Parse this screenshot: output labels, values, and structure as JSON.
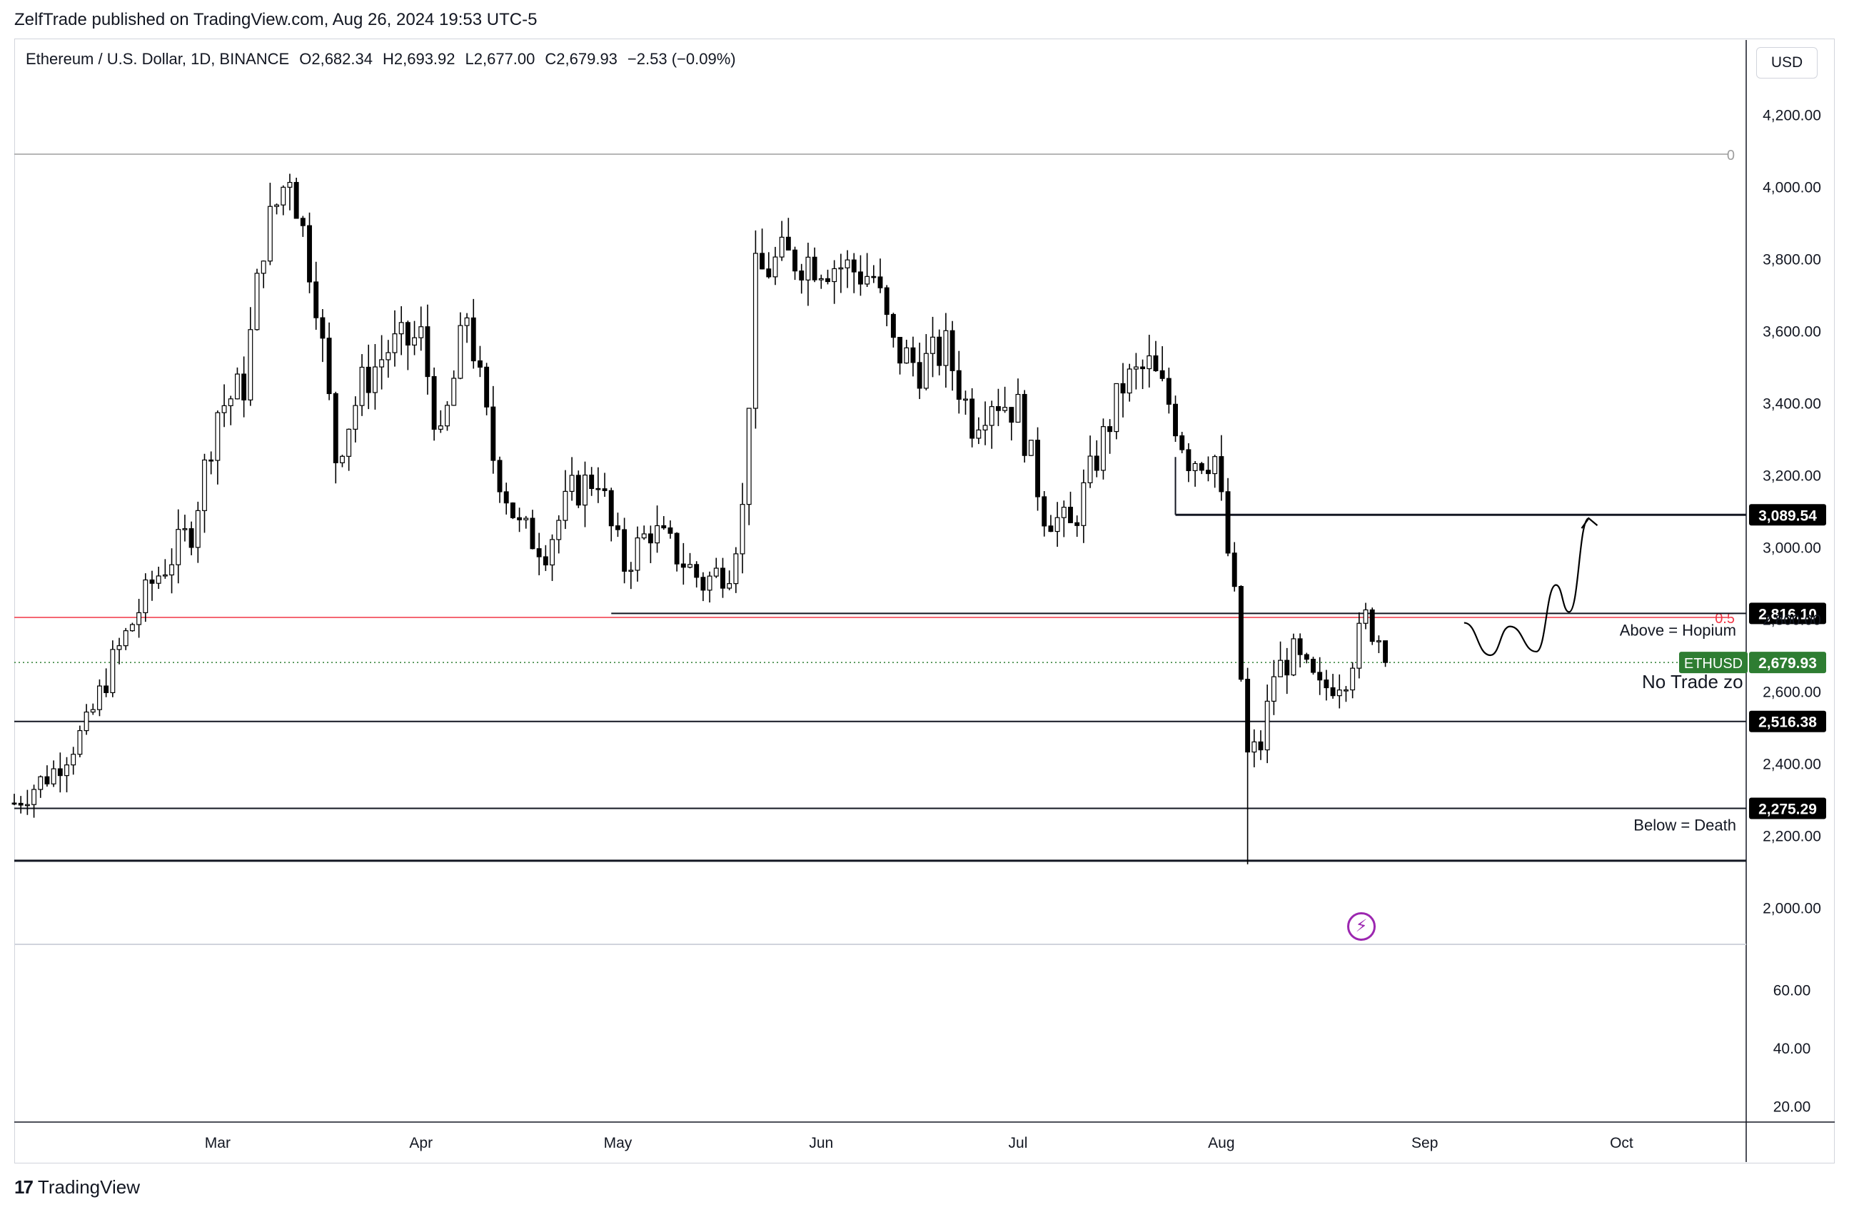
{
  "header": {
    "publisher_line": "ZelfTrade published on TradingView.com, Aug 26, 2024 19:53 UTC-5"
  },
  "legend": {
    "symbol": "Ethereum / U.S. Dollar, 1D, BINANCE",
    "open": "O2,682.34",
    "high": "H2,693.92",
    "low": "L2,677.00",
    "close": "C2,679.93",
    "change": "−2.53 (−0.09%)"
  },
  "currency_button": "USD",
  "footer": {
    "brand": "TradingView",
    "mark": "17"
  },
  "colors": {
    "candle_up_fill": "#ffffff",
    "candle_down_fill": "#000000",
    "candle_outline": "#000000",
    "fib_line": "#f23645",
    "last_price_label": "#2e7d32",
    "level_label": "#000000",
    "grid_border": "#d1d4dc",
    "indicator_icon": "#9c27b0"
  },
  "icons": {
    "indicator": "lightning-circle-icon",
    "logo": "tradingview-logo-icon"
  },
  "chart_data": {
    "type": "candlestick",
    "symbol": "ETHUSD",
    "timeframe": "1D",
    "x_range": [
      "2024-01-30",
      "2024-10-20"
    ],
    "y_range": [
      1900,
      4300
    ],
    "price_axis_ticks": [
      "2,000.00",
      "2,200.00",
      "2,400.00",
      "2,600.00",
      "2,800.00",
      "3,000.00",
      "3,200.00",
      "3,400.00",
      "3,600.00",
      "3,800.00",
      "4,000.00",
      "4,200.00"
    ],
    "time_axis_ticks": [
      "Mar",
      "Apr",
      "May",
      "Jun",
      "Jul",
      "Aug",
      "Sep",
      "Oct"
    ],
    "time_axis_dates": [
      "2024-03-01",
      "2024-04-01",
      "2024-05-01",
      "2024-06-01",
      "2024-07-01",
      "2024-08-01",
      "2024-09-01",
      "2024-10-01"
    ],
    "close_path": [
      [
        "2024-01-30",
        2290
      ],
      [
        "2024-02-05",
        2380
      ],
      [
        "2024-02-10",
        2500
      ],
      [
        "2024-02-14",
        2680
      ],
      [
        "2024-02-20",
        2900
      ],
      [
        "2024-02-26",
        3050
      ],
      [
        "2024-03-01",
        3380
      ],
      [
        "2024-03-05",
        3450
      ],
      [
        "2024-03-08",
        3850
      ],
      [
        "2024-03-12",
        4050
      ],
      [
        "2024-03-16",
        3700
      ],
      [
        "2024-03-19",
        3250
      ],
      [
        "2024-03-23",
        3450
      ],
      [
        "2024-03-27",
        3550
      ],
      [
        "2024-04-01",
        3580
      ],
      [
        "2024-04-04",
        3280
      ],
      [
        "2024-04-08",
        3650
      ],
      [
        "2024-04-12",
        3250
      ],
      [
        "2024-04-16",
        3050
      ],
      [
        "2024-04-20",
        3000
      ],
      [
        "2024-04-24",
        3150
      ],
      [
        "2024-04-28",
        3200
      ],
      [
        "2024-04-30",
        3050
      ],
      [
        "2024-05-02",
        2950
      ],
      [
        "2024-05-06",
        3050
      ],
      [
        "2024-05-10",
        2980
      ],
      [
        "2024-05-14",
        2900
      ],
      [
        "2024-05-18",
        2950
      ],
      [
        "2024-05-20",
        3100
      ],
      [
        "2024-05-22",
        3750
      ],
      [
        "2024-05-26",
        3800
      ],
      [
        "2024-05-30",
        3800
      ],
      [
        "2024-06-04",
        3780
      ],
      [
        "2024-06-09",
        3750
      ],
      [
        "2024-06-12",
        3550
      ],
      [
        "2024-06-16",
        3500
      ],
      [
        "2024-06-20",
        3550
      ],
      [
        "2024-06-24",
        3350
      ],
      [
        "2024-06-27",
        3420
      ],
      [
        "2024-07-01",
        3380
      ],
      [
        "2024-07-05",
        3100
      ],
      [
        "2024-07-09",
        3050
      ],
      [
        "2024-07-13",
        3250
      ],
      [
        "2024-07-17",
        3450
      ],
      [
        "2024-07-21",
        3500
      ],
      [
        "2024-07-24",
        3400
      ],
      [
        "2024-07-27",
        3250
      ],
      [
        "2024-07-31",
        3250
      ],
      [
        "2024-08-03",
        2850
      ],
      [
        "2024-08-05",
        2420
      ],
      [
        "2024-08-07",
        2450
      ],
      [
        "2024-08-09",
        2650
      ],
      [
        "2024-08-12",
        2700
      ],
      [
        "2024-08-16",
        2600
      ],
      [
        "2024-08-20",
        2650
      ],
      [
        "2024-08-23",
        2800
      ],
      [
        "2024-08-25",
        2750
      ],
      [
        "2024-08-26",
        2679.93
      ]
    ],
    "horizontal_levels": [
      {
        "price": 3089.54,
        "label": "3,089.54",
        "from": "2024-07-25"
      },
      {
        "price": 2816.1,
        "label": "2,816.10",
        "from": "2024-04-30"
      },
      {
        "price": 2516.38,
        "label": "2,516.38",
        "from": "2024-01-30"
      },
      {
        "price": 2275.29,
        "label": "2,275.29",
        "from": "2024-01-30"
      },
      {
        "price": 2130,
        "label": "",
        "from": "2024-01-30"
      }
    ],
    "fib_levels": [
      {
        "ratio": "0",
        "price": 4090
      },
      {
        "ratio": "0.5",
        "price": 2805
      }
    ],
    "last_price": {
      "symbol": "ETHUSD",
      "value": 2679.93,
      "label": "2,679.93"
    },
    "annotations": [
      {
        "text": "Above = Hopium",
        "price": 2770
      },
      {
        "text": "No Trade zo",
        "price": 2625
      },
      {
        "text": "Below = Death",
        "price": 2230
      }
    ],
    "projection_path": [
      [
        "2024-09-07",
        2790
      ],
      [
        "2024-09-11",
        2700
      ],
      [
        "2024-09-14",
        2780
      ],
      [
        "2024-09-18",
        2710
      ],
      [
        "2024-09-21",
        2895
      ],
      [
        "2024-09-23",
        2820
      ],
      [
        "2024-09-26",
        3080
      ]
    ],
    "indicator_pane": {
      "ticks": [
        "20.00",
        "40.00",
        "60.00"
      ],
      "y_range": [
        15,
        75
      ]
    }
  }
}
